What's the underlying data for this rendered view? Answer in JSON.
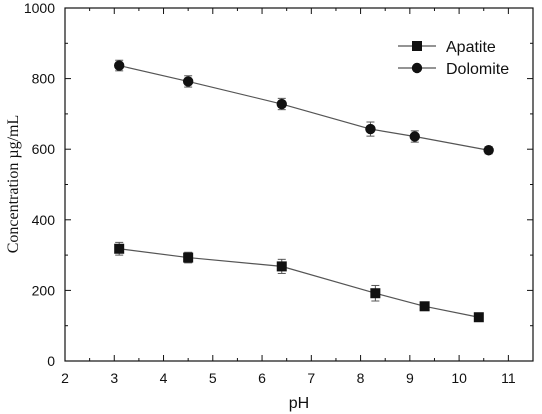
{
  "chart_data": {
    "type": "line",
    "title": "",
    "xlabel": "pH",
    "ylabel": "Concentration µg/mL",
    "xlim": [
      2,
      11.5
    ],
    "ylim": [
      0,
      1000
    ],
    "x_ticks": [
      2,
      3,
      4,
      5,
      6,
      7,
      8,
      9,
      10,
      11
    ],
    "y_ticks": [
      0,
      200,
      400,
      600,
      800,
      1000
    ],
    "x_tick_labels": [
      "2",
      "3",
      "4",
      "5",
      "6",
      "7",
      "8",
      "9",
      "10",
      "11"
    ],
    "y_tick_labels": [
      "0",
      "200",
      "400",
      "600",
      "800",
      "1000"
    ],
    "grid": false,
    "legend_position": "top-right",
    "series": [
      {
        "name": "Apatite",
        "marker": "square",
        "color": "#111111",
        "x": [
          3.1,
          4.5,
          6.4,
          8.3,
          9.3,
          10.4
        ],
        "y": [
          318,
          293,
          268,
          192,
          155,
          124
        ],
        "error": [
          18,
          15,
          20,
          22,
          10,
          12
        ]
      },
      {
        "name": "Dolomite",
        "marker": "circle",
        "color": "#111111",
        "x": [
          3.1,
          4.5,
          6.4,
          8.2,
          9.1,
          10.6
        ],
        "y": [
          837,
          792,
          728,
          657,
          636,
          597
        ],
        "error": [
          15,
          16,
          16,
          20,
          16,
          10
        ]
      }
    ]
  }
}
